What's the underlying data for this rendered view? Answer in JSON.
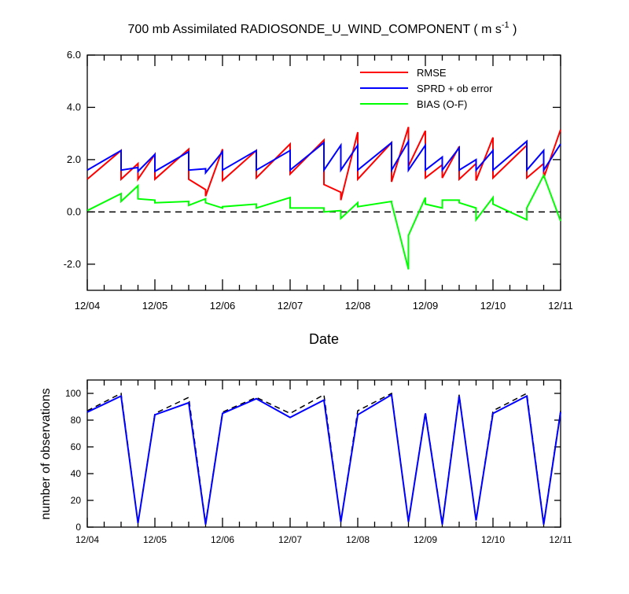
{
  "page": {
    "title_main": "700 mb Assimilated RADIOSONDE_U_WIND_COMPONENT ( m s",
    "title_sup": "-1",
    "title_end": " )"
  },
  "colors": {
    "rmse": "#ff0000",
    "sprd": "#0000ff",
    "bias": "#00ff00",
    "zero_line": "#000000",
    "obs_used": "#0000ff",
    "obs_possible": "#000000"
  },
  "chart_data": [
    {
      "type": "line",
      "xlabel": "Date",
      "ylabel": "",
      "x_tick_labels": [
        "12/04",
        "12/05",
        "12/06",
        "12/07",
        "12/08",
        "12/09",
        "12/10",
        "12/11"
      ],
      "x_range_days": [
        0,
        7
      ],
      "y_tick_labels": [
        "6.0",
        "4.0",
        "2.0",
        "0.0",
        "-2.0"
      ],
      "y_tick_values": [
        6,
        4,
        2,
        0,
        -2
      ],
      "ylim": [
        -3,
        6
      ],
      "reference_line": {
        "y": 0,
        "style": "dashed"
      },
      "legend_position": "top-right",
      "legend": [
        "RMSE",
        "SPRD + ob error",
        "BIAS (O-F)"
      ],
      "series": [
        {
          "name": "RMSE",
          "points": [
            [
              0,
              1.25
            ],
            [
              0.5,
              2.35
            ],
            [
              0.5,
              1.25
            ],
            [
              0.75,
              1.85
            ],
            [
              0.75,
              1.25
            ],
            [
              1,
              2.2
            ],
            [
              1,
              1.25
            ],
            [
              1.5,
              2.4
            ],
            [
              1.5,
              1.25
            ],
            [
              1.75,
              0.85
            ],
            [
              1.75,
              0.6
            ],
            [
              2,
              2.4
            ],
            [
              2,
              1.2
            ],
            [
              2.5,
              2.35
            ],
            [
              2.5,
              1.3
            ],
            [
              3,
              2.6
            ],
            [
              3,
              1.45
            ],
            [
              3.5,
              2.75
            ],
            [
              3.5,
              1.05
            ],
            [
              3.75,
              0.75
            ],
            [
              3.75,
              0.45
            ],
            [
              4,
              3.05
            ],
            [
              4,
              1.25
            ],
            [
              4.5,
              2.65
            ],
            [
              4.5,
              1.15
            ],
            [
              4.75,
              3.25
            ],
            [
              4.75,
              1.75
            ],
            [
              5,
              3.1
            ],
            [
              5,
              1.3
            ],
            [
              5.25,
              1.8
            ],
            [
              5.25,
              1.3
            ],
            [
              5.5,
              2.5
            ],
            [
              5.5,
              1.25
            ],
            [
              5.75,
              1.85
            ],
            [
              5.75,
              1.2
            ],
            [
              6,
              2.85
            ],
            [
              6,
              1.3
            ],
            [
              6.5,
              2.55
            ],
            [
              6.5,
              1.3
            ],
            [
              6.75,
              1.85
            ],
            [
              6.75,
              1.3
            ],
            [
              7,
              3.15
            ]
          ]
        },
        {
          "name": "SPRD + ob error",
          "points": [
            [
              0,
              1.6
            ],
            [
              0.5,
              2.35
            ],
            [
              0.5,
              1.6
            ],
            [
              0.75,
              1.7
            ],
            [
              0.75,
              1.55
            ],
            [
              1,
              2.2
            ],
            [
              1,
              1.55
            ],
            [
              1.5,
              2.3
            ],
            [
              1.5,
              1.6
            ],
            [
              1.75,
              1.65
            ],
            [
              1.75,
              1.5
            ],
            [
              2,
              2.3
            ],
            [
              2,
              1.6
            ],
            [
              2.5,
              2.35
            ],
            [
              2.5,
              1.6
            ],
            [
              3,
              2.35
            ],
            [
              3,
              1.6
            ],
            [
              3.5,
              2.65
            ],
            [
              3.5,
              1.6
            ],
            [
              3.75,
              2.55
            ],
            [
              3.75,
              1.6
            ],
            [
              4,
              2.55
            ],
            [
              4,
              1.6
            ],
            [
              4.5,
              2.65
            ],
            [
              4.5,
              1.6
            ],
            [
              4.75,
              2.7
            ],
            [
              4.75,
              1.6
            ],
            [
              5,
              2.55
            ],
            [
              5,
              1.6
            ],
            [
              5.25,
              2.1
            ],
            [
              5.25,
              1.6
            ],
            [
              5.5,
              2.45
            ],
            [
              5.5,
              1.6
            ],
            [
              5.75,
              2.0
            ],
            [
              5.75,
              1.6
            ],
            [
              6,
              2.35
            ],
            [
              6,
              1.6
            ],
            [
              6.5,
              2.7
            ],
            [
              6.5,
              1.6
            ],
            [
              6.75,
              2.35
            ],
            [
              6.75,
              1.6
            ],
            [
              7,
              2.6
            ]
          ]
        },
        {
          "name": "BIAS (O-F)",
          "points": [
            [
              0,
              0.05
            ],
            [
              0.5,
              0.7
            ],
            [
              0.5,
              0.4
            ],
            [
              0.75,
              1.0
            ],
            [
              0.75,
              0.5
            ],
            [
              1,
              0.45
            ],
            [
              1,
              0.35
            ],
            [
              1.5,
              0.4
            ],
            [
              1.5,
              0.25
            ],
            [
              1.75,
              0.5
            ],
            [
              1.75,
              0.35
            ],
            [
              2,
              0.15
            ],
            [
              2,
              0.2
            ],
            [
              2.5,
              0.3
            ],
            [
              2.5,
              0.15
            ],
            [
              3,
              0.55
            ],
            [
              3,
              0.15
            ],
            [
              3.5,
              0.15
            ],
            [
              3.5,
              0.0
            ],
            [
              3.75,
              0.05
            ],
            [
              3.75,
              -0.25
            ],
            [
              4,
              0.35
            ],
            [
              4,
              0.2
            ],
            [
              4.5,
              0.4
            ],
            [
              4.5,
              0.35
            ],
            [
              4.75,
              -2.2
            ],
            [
              4.75,
              -0.9
            ],
            [
              5,
              0.55
            ],
            [
              5,
              0.3
            ],
            [
              5.25,
              0.15
            ],
            [
              5.25,
              0.45
            ],
            [
              5.5,
              0.45
            ],
            [
              5.5,
              0.35
            ],
            [
              5.75,
              0.15
            ],
            [
              5.75,
              -0.3
            ],
            [
              6,
              0.55
            ],
            [
              6,
              0.3
            ],
            [
              6.5,
              -0.3
            ],
            [
              6.5,
              0.15
            ],
            [
              6.75,
              1.4
            ],
            [
              7,
              -0.35
            ]
          ]
        }
      ]
    },
    {
      "type": "line",
      "xlabel": "",
      "ylabel": "number of observations",
      "x_tick_labels": [
        "12/04",
        "12/05",
        "12/06",
        "12/07",
        "12/08",
        "12/09",
        "12/10",
        "12/11"
      ],
      "x_range_days": [
        0,
        7
      ],
      "y_tick_labels": [
        "0",
        "20",
        "40",
        "60",
        "80",
        "100"
      ],
      "y_tick_values": [
        0,
        20,
        40,
        60,
        80,
        100
      ],
      "ylim": [
        0,
        110
      ],
      "series": [
        {
          "style": "dashed",
          "points": [
            [
              0,
              87
            ],
            [
              0.5,
              100
            ],
            [
              0.75,
              3
            ],
            [
              1,
              85
            ],
            [
              1.5,
              97
            ],
            [
              1.75,
              3
            ],
            [
              2,
              86
            ],
            [
              2.5,
              97
            ],
            [
              3,
              85
            ],
            [
              3.5,
              99
            ],
            [
              3.75,
              4
            ],
            [
              4,
              87
            ],
            [
              4.5,
              100
            ],
            [
              4.75,
              4
            ],
            [
              5,
              86
            ],
            [
              5.25,
              3
            ],
            [
              5.5,
              99
            ],
            [
              5.75,
              5
            ],
            [
              6,
              87
            ],
            [
              6.5,
              100
            ],
            [
              6.75,
              3
            ],
            [
              7,
              87
            ]
          ]
        },
        {
          "style": "solid",
          "points": [
            [
              0,
              86
            ],
            [
              0.5,
              98
            ],
            [
              0.75,
              3
            ],
            [
              1,
              84
            ],
            [
              1.5,
              93
            ],
            [
              1.75,
              2
            ],
            [
              2,
              85
            ],
            [
              2.5,
              96
            ],
            [
              3,
              82
            ],
            [
              3.5,
              95
            ],
            [
              3.75,
              4
            ],
            [
              4,
              84
            ],
            [
              4.5,
              99
            ],
            [
              4.75,
              4
            ],
            [
              5,
              85
            ],
            [
              5.25,
              2
            ],
            [
              5.5,
              98
            ],
            [
              5.75,
              5
            ],
            [
              6,
              85
            ],
            [
              6.5,
              98
            ],
            [
              6.75,
              2
            ],
            [
              7,
              86
            ]
          ]
        }
      ]
    }
  ]
}
